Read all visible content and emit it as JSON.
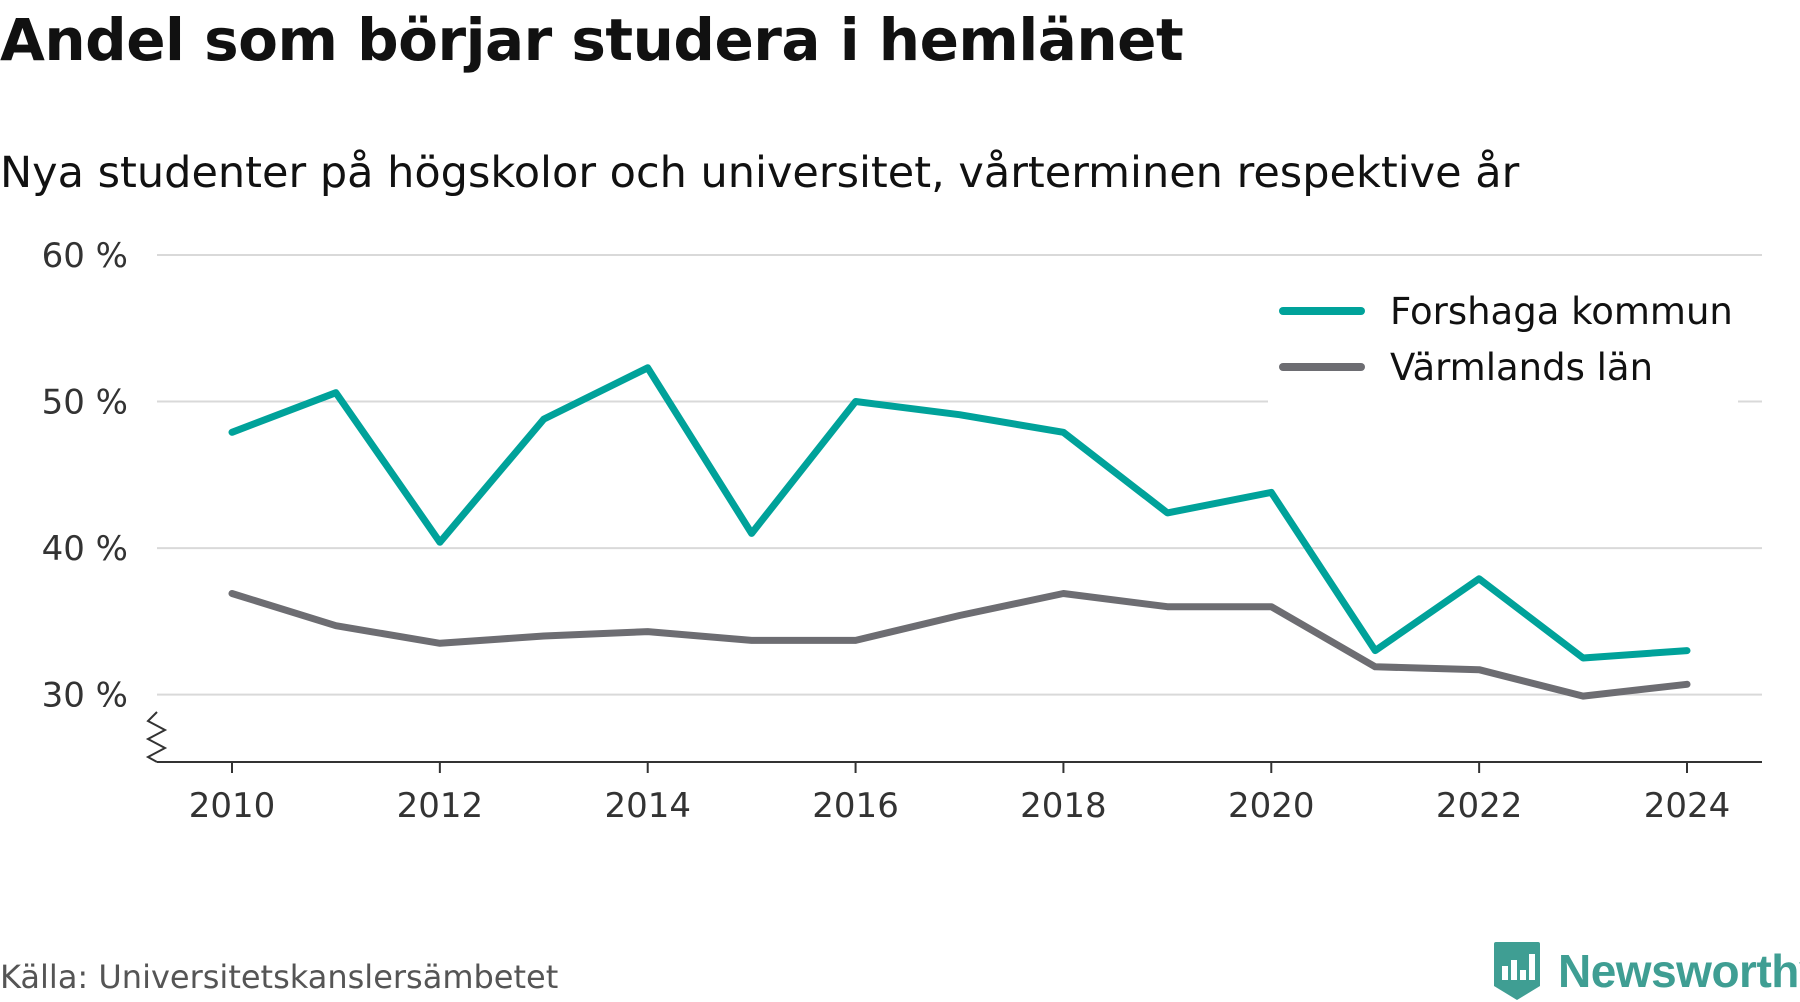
{
  "title": "Andel som börjar studera i hemlänet",
  "subtitle": "Nya studenter på högskolor och universitet, vårterminen respektive år",
  "source": "Källa: Universitetskanslersämbetet",
  "brand": {
    "name": "Newsworthy",
    "icon": "newsworthy-logo-icon",
    "color": "#3f9e93"
  },
  "chart_data": {
    "type": "line",
    "x": [
      2010,
      2011,
      2012,
      2013,
      2014,
      2015,
      2016,
      2017,
      2018,
      2019,
      2020,
      2021,
      2022,
      2023,
      2024
    ],
    "x_ticks": [
      2010,
      2012,
      2014,
      2016,
      2018,
      2020,
      2022,
      2024
    ],
    "x_tick_labels": [
      "2010",
      "2012",
      "2014",
      "2016",
      "2018",
      "2020",
      "2022",
      "2024"
    ],
    "y_ticks": [
      30,
      40,
      50,
      60
    ],
    "y_tick_labels": [
      "30 %",
      "40 %",
      "50 %",
      "60 %"
    ],
    "ylim": [
      25.4,
      60
    ],
    "y_axis_break": true,
    "grid": true,
    "legend_position": "top-right",
    "series": [
      {
        "name": "Forshaga kommun",
        "color": "#00a29a",
        "values": [
          47.9,
          50.6,
          40.4,
          48.8,
          52.3,
          41.0,
          50.0,
          49.1,
          47.9,
          42.4,
          43.8,
          33.0,
          37.9,
          32.5,
          33.0
        ]
      },
      {
        "name": "Värmlands län",
        "color": "#6d6d72",
        "values": [
          36.9,
          34.7,
          33.5,
          34.0,
          34.3,
          33.7,
          33.7,
          35.4,
          36.9,
          36.0,
          36.0,
          31.9,
          31.7,
          29.9,
          30.7
        ]
      }
    ]
  }
}
